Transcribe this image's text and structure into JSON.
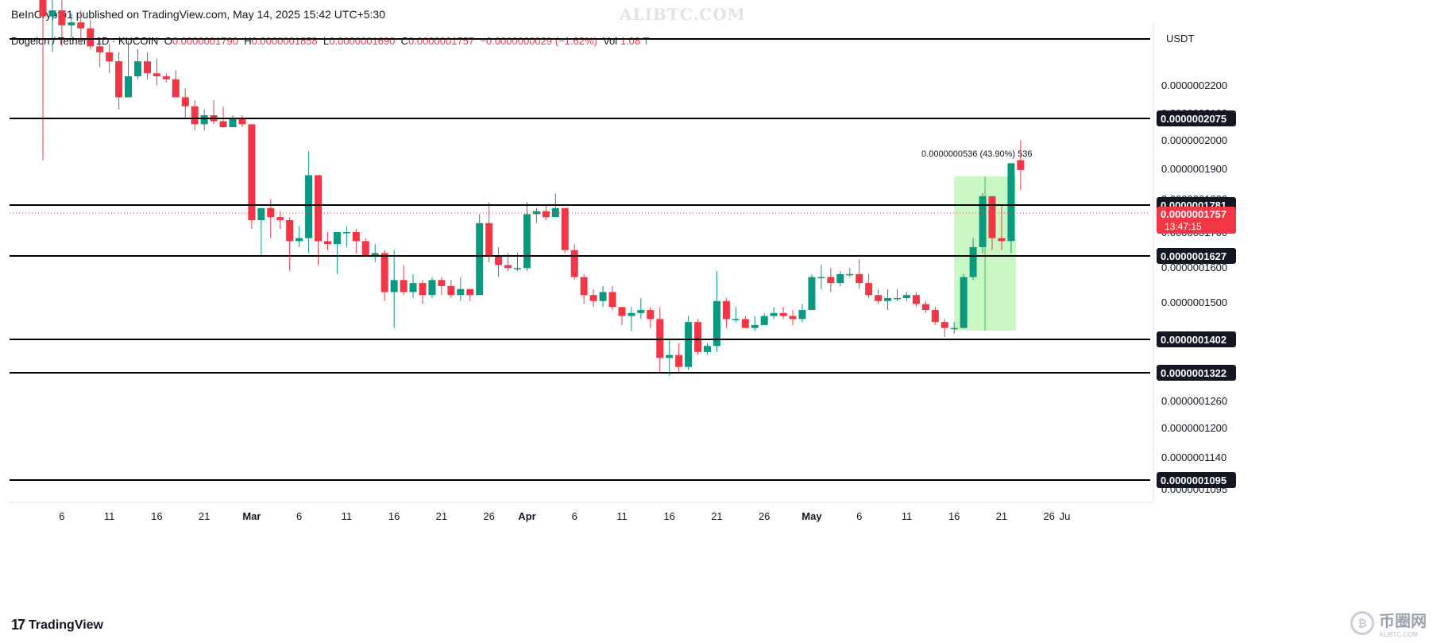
{
  "header": {
    "publisher_line": "BeInCrypto1 published on TradingView.com, May 14, 2025 15:42 UTC+5:30",
    "watermark": "ALIBTC.COM"
  },
  "legend": {
    "symbol": "Dogelon / Tether · 1D · KUCOIN",
    "o_label": "O",
    "o_value": "0.0000001790",
    "h_label": "H",
    "h_value": "0.0000001858",
    "l_label": "L",
    "l_value": "0.0000001690",
    "c_label": "C",
    "c_value": "0.0000001757",
    "change": "−0.0000000029 (−1.62%)",
    "vol_label": "Vol",
    "vol_value": "1.08 T"
  },
  "price_axis": {
    "currency": "USDT",
    "ticks": [
      "0.0000002200",
      "0.0000002100",
      "0.0000002000",
      "0.0000001900",
      "0.0000001800",
      "0.0000001700",
      "0.0000001600",
      "0.0000001500",
      "0.0000001400",
      "0.0000001260",
      "0.0000001200",
      "0.0000001140",
      "0.0000001095"
    ]
  },
  "footer": {
    "brand": "TradingView",
    "corner_brand": "币圈网",
    "corner_sub": "ALIBTC.COM"
  },
  "colors": {
    "up": "#089981",
    "down": "#f23645",
    "line": "#000000",
    "measure_fill": "#b7f5b0",
    "measure_line": "#4caf50"
  },
  "chart_data": {
    "type": "candlestick",
    "title": "Dogelon / Tether · 1D · KUCOIN",
    "x_ticks": [
      "6",
      "11",
      "16",
      "21",
      "Mar",
      "6",
      "11",
      "16",
      "21",
      "26",
      "Apr",
      "6",
      "11",
      "16",
      "21",
      "26",
      "May",
      "6",
      "11",
      "16",
      "21",
      "26",
      "Ju"
    ],
    "horizontal_levels": [
      {
        "value": 2.075e-07,
        "label": "0.0000002075"
      },
      {
        "value": 1.781e-07,
        "label": "0.0000001781"
      },
      {
        "value": 1.627e-07,
        "label": "0.0000001627"
      },
      {
        "value": 1.402e-07,
        "label": "0.0000001402"
      },
      {
        "value": 1.322e-07,
        "label": "0.0000001322"
      },
      {
        "value": 1.095e-07,
        "label": "0.0000001095"
      }
    ],
    "current_price": {
      "value": 1.757e-07,
      "label": "0.0000001757",
      "countdown": "13:47:15"
    },
    "measure": {
      "label": "0.0000000536 (43.90%) 536",
      "from": 1.221e-07,
      "to": 1.757e-07,
      "start_day": 96,
      "end_day": 102
    },
    "candles": [
      {
        "d": 0,
        "o": 2.33e-07,
        "h": 2.38e-07,
        "l": 1.79e-07,
        "c": 2.27e-07
      },
      {
        "d": 1,
        "o": 2.27e-07,
        "h": 2.33e-07,
        "l": 2.15e-07,
        "c": 2.29e-07
      },
      {
        "d": 2,
        "o": 2.29e-07,
        "h": 2.33e-07,
        "l": 2.17e-07,
        "c": 2.24e-07
      },
      {
        "d": 3,
        "o": 2.24e-07,
        "h": 2.28e-07,
        "l": 2.2e-07,
        "c": 2.25e-07
      },
      {
        "d": 4,
        "o": 2.25e-07,
        "h": 2.29e-07,
        "l": 2.18e-07,
        "c": 2.23e-07
      },
      {
        "d": 5,
        "o": 2.23e-07,
        "h": 2.26e-07,
        "l": 2.16e-07,
        "c": 2.17e-07
      },
      {
        "d": 6,
        "o": 2.17e-07,
        "h": 2.2e-07,
        "l": 2.1e-07,
        "c": 2.15e-07
      },
      {
        "d": 7,
        "o": 2.15e-07,
        "h": 2.18e-07,
        "l": 2.08e-07,
        "c": 2.12e-07
      },
      {
        "d": 8,
        "o": 2.12e-07,
        "h": 2.15e-07,
        "l": 1.96e-07,
        "c": 2e-07
      },
      {
        "d": 9,
        "o": 2e-07,
        "h": 2.19e-07,
        "l": 2e-07,
        "c": 2.07e-07
      },
      {
        "d": 10,
        "o": 2.07e-07,
        "h": 2.16e-07,
        "l": 2.06e-07,
        "c": 2.12e-07
      },
      {
        "d": 11,
        "o": 2.12e-07,
        "h": 2.15e-07,
        "l": 2.06e-07,
        "c": 2.08e-07
      },
      {
        "d": 12,
        "o": 2.08e-07,
        "h": 2.13e-07,
        "l": 2.04e-07,
        "c": 2.07e-07
      },
      {
        "d": 13,
        "o": 2.07e-07,
        "h": 2.08e-07,
        "l": 2.05e-07,
        "c": 2.06e-07
      },
      {
        "d": 14,
        "o": 2.06e-07,
        "h": 2.09e-07,
        "l": 2e-07,
        "c": 2e-07
      },
      {
        "d": 15,
        "o": 2e-07,
        "h": 2.03e-07,
        "l": 1.93e-07,
        "c": 1.97e-07
      },
      {
        "d": 16,
        "o": 1.97e-07,
        "h": 1.99e-07,
        "l": 1.89e-07,
        "c": 1.91e-07
      },
      {
        "d": 17,
        "o": 1.91e-07,
        "h": 1.96e-07,
        "l": 1.89e-07,
        "c": 1.94e-07
      },
      {
        "d": 18,
        "o": 1.94e-07,
        "h": 1.99e-07,
        "l": 1.91e-07,
        "c": 1.92e-07
      },
      {
        "d": 19,
        "o": 1.92e-07,
        "h": 1.97e-07,
        "l": 1.9e-07,
        "c": 1.9e-07
      },
      {
        "d": 20,
        "o": 1.9e-07,
        "h": 1.94e-07,
        "l": 1.9e-07,
        "c": 1.93e-07
      },
      {
        "d": 21,
        "o": 1.93e-07,
        "h": 1.94e-07,
        "l": 1.9e-07,
        "c": 1.91e-07
      },
      {
        "d": 22,
        "o": 1.91e-07,
        "h": 1.91e-07,
        "l": 1.56e-07,
        "c": 1.59e-07
      },
      {
        "d": 23,
        "o": 1.59e-07,
        "h": 1.63e-07,
        "l": 1.47e-07,
        "c": 1.63e-07
      },
      {
        "d": 24,
        "o": 1.63e-07,
        "h": 1.66e-07,
        "l": 1.53e-07,
        "c": 1.6e-07
      },
      {
        "d": 25,
        "o": 1.6e-07,
        "h": 1.62e-07,
        "l": 1.56e-07,
        "c": 1.59e-07
      },
      {
        "d": 26,
        "o": 1.59e-07,
        "h": 1.6e-07,
        "l": 1.42e-07,
        "c": 1.52e-07
      },
      {
        "d": 27,
        "o": 1.52e-07,
        "h": 1.57e-07,
        "l": 1.5e-07,
        "c": 1.53e-07
      },
      {
        "d": 28,
        "o": 1.53e-07,
        "h": 1.82e-07,
        "l": 1.48e-07,
        "c": 1.74e-07
      },
      {
        "d": 29,
        "o": 1.74e-07,
        "h": 1.74e-07,
        "l": 1.44e-07,
        "c": 1.52e-07
      },
      {
        "d": 30,
        "o": 1.52e-07,
        "h": 1.55e-07,
        "l": 1.49e-07,
        "c": 1.51e-07
      },
      {
        "d": 31,
        "o": 1.51e-07,
        "h": 1.54e-07,
        "l": 1.41e-07,
        "c": 1.55e-07
      },
      {
        "d": 32,
        "o": 1.55e-07,
        "h": 1.57e-07,
        "l": 1.5e-07,
        "c": 1.55e-07
      },
      {
        "d": 33,
        "o": 1.55e-07,
        "h": 1.56e-07,
        "l": 1.48e-07,
        "c": 1.52e-07
      },
      {
        "d": 34,
        "o": 1.52e-07,
        "h": 1.53e-07,
        "l": 1.47e-07,
        "c": 1.47e-07
      },
      {
        "d": 35,
        "o": 1.47e-07,
        "h": 1.51e-07,
        "l": 1.45e-07,
        "c": 1.48e-07
      },
      {
        "d": 36,
        "o": 1.48e-07,
        "h": 1.49e-07,
        "l": 1.32e-07,
        "c": 1.35e-07
      },
      {
        "d": 37,
        "o": 1.35e-07,
        "h": 1.49e-07,
        "l": 1.23e-07,
        "c": 1.39e-07
      },
      {
        "d": 38,
        "o": 1.39e-07,
        "h": 1.44e-07,
        "l": 1.34e-07,
        "c": 1.35e-07
      },
      {
        "d": 39,
        "o": 1.35e-07,
        "h": 1.41e-07,
        "l": 1.33e-07,
        "c": 1.38e-07
      },
      {
        "d": 40,
        "o": 1.38e-07,
        "h": 1.39e-07,
        "l": 1.31e-07,
        "c": 1.34e-07
      },
      {
        "d": 41,
        "o": 1.34e-07,
        "h": 1.4e-07,
        "l": 1.33e-07,
        "c": 1.39e-07
      },
      {
        "d": 42,
        "o": 1.39e-07,
        "h": 1.4e-07,
        "l": 1.34e-07,
        "c": 1.37e-07
      },
      {
        "d": 43,
        "o": 1.37e-07,
        "h": 1.39e-07,
        "l": 1.33e-07,
        "c": 1.34e-07
      },
      {
        "d": 44,
        "o": 1.34e-07,
        "h": 1.4e-07,
        "l": 1.32e-07,
        "c": 1.36e-07
      },
      {
        "d": 45,
        "o": 1.36e-07,
        "h": 1.36e-07,
        "l": 1.32e-07,
        "c": 1.34e-07
      },
      {
        "d": 46,
        "o": 1.34e-07,
        "h": 1.61e-07,
        "l": 1.34e-07,
        "c": 1.58e-07
      },
      {
        "d": 47,
        "o": 1.58e-07,
        "h": 1.65e-07,
        "l": 1.45e-07,
        "c": 1.47e-07
      },
      {
        "d": 48,
        "o": 1.47e-07,
        "h": 1.5e-07,
        "l": 1.4e-07,
        "c": 1.44e-07
      },
      {
        "d": 49,
        "o": 1.44e-07,
        "h": 1.48e-07,
        "l": 1.42e-07,
        "c": 1.43e-07
      },
      {
        "d": 50,
        "o": 1.43e-07,
        "h": 1.48e-07,
        "l": 1.42e-07,
        "c": 1.43e-07
      },
      {
        "d": 51,
        "o": 1.43e-07,
        "h": 1.65e-07,
        "l": 1.42e-07,
        "c": 1.61e-07
      },
      {
        "d": 52,
        "o": 1.61e-07,
        "h": 1.63e-07,
        "l": 1.58e-07,
        "c": 1.62e-07
      },
      {
        "d": 53,
        "o": 1.62e-07,
        "h": 1.64e-07,
        "l": 1.59e-07,
        "c": 1.6e-07
      },
      {
        "d": 54,
        "o": 1.6e-07,
        "h": 1.68e-07,
        "l": 1.6e-07,
        "c": 1.63e-07
      },
      {
        "d": 55,
        "o": 1.63e-07,
        "h": 1.63e-07,
        "l": 1.48e-07,
        "c": 1.49e-07
      },
      {
        "d": 56,
        "o": 1.49e-07,
        "h": 1.51e-07,
        "l": 1.39e-07,
        "c": 1.4e-07
      },
      {
        "d": 57,
        "o": 1.4e-07,
        "h": 1.41e-07,
        "l": 1.31e-07,
        "c": 1.34e-07
      },
      {
        "d": 58,
        "o": 1.34e-07,
        "h": 1.36e-07,
        "l": 1.3e-07,
        "c": 1.32e-07
      },
      {
        "d": 59,
        "o": 1.32e-07,
        "h": 1.37e-07,
        "l": 1.3e-07,
        "c": 1.35e-07
      },
      {
        "d": 60,
        "o": 1.35e-07,
        "h": 1.37e-07,
        "l": 1.29e-07,
        "c": 1.3e-07
      },
      {
        "d": 61,
        "o": 1.3e-07,
        "h": 1.3e-07,
        "l": 1.24e-07,
        "c": 1.27e-07
      },
      {
        "d": 62,
        "o": 1.27e-07,
        "h": 1.3e-07,
        "l": 1.22e-07,
        "c": 1.28e-07
      },
      {
        "d": 63,
        "o": 1.28e-07,
        "h": 1.33e-07,
        "l": 1.26e-07,
        "c": 1.29e-07
      },
      {
        "d": 64,
        "o": 1.29e-07,
        "h": 1.3e-07,
        "l": 1.23e-07,
        "c": 1.26e-07
      },
      {
        "d": 65,
        "o": 1.26e-07,
        "h": 1.3e-07,
        "l": 1.08e-07,
        "c": 1.13e-07
      },
      {
        "d": 66,
        "o": 1.13e-07,
        "h": 1.19e-07,
        "l": 1.07e-07,
        "c": 1.14e-07
      },
      {
        "d": 67,
        "o": 1.14e-07,
        "h": 1.18e-07,
        "l": 1.08e-07,
        "c": 1.1e-07
      },
      {
        "d": 68,
        "o": 1.1e-07,
        "h": 1.27e-07,
        "l": 1.09e-07,
        "c": 1.25e-07
      },
      {
        "d": 69,
        "o": 1.25e-07,
        "h": 1.26e-07,
        "l": 1.14e-07,
        "c": 1.15e-07
      },
      {
        "d": 70,
        "o": 1.15e-07,
        "h": 1.18e-07,
        "l": 1.14e-07,
        "c": 1.17e-07
      },
      {
        "d": 71,
        "o": 1.17e-07,
        "h": 1.42e-07,
        "l": 1.15e-07,
        "c": 1.32e-07
      },
      {
        "d": 72,
        "o": 1.32e-07,
        "h": 1.33e-07,
        "l": 1.23e-07,
        "c": 1.26e-07
      },
      {
        "d": 73,
        "o": 1.26e-07,
        "h": 1.3e-07,
        "l": 1.25e-07,
        "c": 1.26e-07
      },
      {
        "d": 74,
        "o": 1.26e-07,
        "h": 1.27e-07,
        "l": 1.23e-07,
        "c": 1.23e-07
      },
      {
        "d": 75,
        "o": 1.23e-07,
        "h": 1.27e-07,
        "l": 1.22e-07,
        "c": 1.24e-07
      },
      {
        "d": 76,
        "o": 1.24e-07,
        "h": 1.28e-07,
        "l": 1.24e-07,
        "c": 1.27e-07
      },
      {
        "d": 77,
        "o": 1.27e-07,
        "h": 1.3e-07,
        "l": 1.26e-07,
        "c": 1.28e-07
      },
      {
        "d": 78,
        "o": 1.28e-07,
        "h": 1.3e-07,
        "l": 1.26e-07,
        "c": 1.27e-07
      },
      {
        "d": 79,
        "o": 1.27e-07,
        "h": 1.29e-07,
        "l": 1.24e-07,
        "c": 1.26e-07
      },
      {
        "d": 80,
        "o": 1.26e-07,
        "h": 1.31e-07,
        "l": 1.25e-07,
        "c": 1.29e-07
      },
      {
        "d": 81,
        "o": 1.29e-07,
        "h": 1.41e-07,
        "l": 1.29e-07,
        "c": 1.4e-07
      },
      {
        "d": 82,
        "o": 1.4e-07,
        "h": 1.44e-07,
        "l": 1.36e-07,
        "c": 1.4e-07
      },
      {
        "d": 83,
        "o": 1.4e-07,
        "h": 1.43e-07,
        "l": 1.35e-07,
        "c": 1.38e-07
      },
      {
        "d": 84,
        "o": 1.38e-07,
        "h": 1.42e-07,
        "l": 1.37e-07,
        "c": 1.41e-07
      },
      {
        "d": 85,
        "o": 1.41e-07,
        "h": 1.43e-07,
        "l": 1.4e-07,
        "c": 1.41e-07
      },
      {
        "d": 86,
        "o": 1.41e-07,
        "h": 1.46e-07,
        "l": 1.36e-07,
        "c": 1.38e-07
      },
      {
        "d": 87,
        "o": 1.38e-07,
        "h": 1.41e-07,
        "l": 1.33e-07,
        "c": 1.34e-07
      },
      {
        "d": 88,
        "o": 1.34e-07,
        "h": 1.36e-07,
        "l": 1.31e-07,
        "c": 1.32e-07
      },
      {
        "d": 89,
        "o": 1.32e-07,
        "h": 1.36e-07,
        "l": 1.29e-07,
        "c": 1.33e-07
      },
      {
        "d": 90,
        "o": 1.33e-07,
        "h": 1.36e-07,
        "l": 1.32e-07,
        "c": 1.33e-07
      },
      {
        "d": 91,
        "o": 1.33e-07,
        "h": 1.35e-07,
        "l": 1.32e-07,
        "c": 1.34e-07
      },
      {
        "d": 92,
        "o": 1.34e-07,
        "h": 1.35e-07,
        "l": 1.3e-07,
        "c": 1.31e-07
      },
      {
        "d": 93,
        "o": 1.31e-07,
        "h": 1.32e-07,
        "l": 1.28e-07,
        "c": 1.29e-07
      },
      {
        "d": 94,
        "o": 1.29e-07,
        "h": 1.3e-07,
        "l": 1.24e-07,
        "c": 1.25e-07
      },
      {
        "d": 95,
        "o": 1.25e-07,
        "h": 1.26e-07,
        "l": 1.2e-07,
        "c": 1.23e-07
      },
      {
        "d": 96,
        "o": 1.23e-07,
        "h": 1.25e-07,
        "l": 1.21e-07,
        "c": 1.23e-07
      },
      {
        "d": 97,
        "o": 1.23e-07,
        "h": 1.41e-07,
        "l": 1.23e-07,
        "c": 1.4e-07
      },
      {
        "d": 98,
        "o": 1.4e-07,
        "h": 1.53e-07,
        "l": 1.39e-07,
        "c": 1.5e-07
      },
      {
        "d": 99,
        "o": 1.5e-07,
        "h": 1.68e-07,
        "l": 1.48e-07,
        "c": 1.67e-07
      },
      {
        "d": 100,
        "o": 1.67e-07,
        "h": 1.67e-07,
        "l": 1.49e-07,
        "c": 1.53e-07
      },
      {
        "d": 101,
        "o": 1.53e-07,
        "h": 1.64e-07,
        "l": 1.49e-07,
        "c": 1.52e-07
      },
      {
        "d": 102,
        "o": 1.52e-07,
        "h": 1.78e-07,
        "l": 1.48e-07,
        "c": 1.78e-07
      },
      {
        "d": 103,
        "o": 1.79e-07,
        "h": 1.858e-07,
        "l": 1.69e-07,
        "c": 1.757e-07
      }
    ]
  }
}
